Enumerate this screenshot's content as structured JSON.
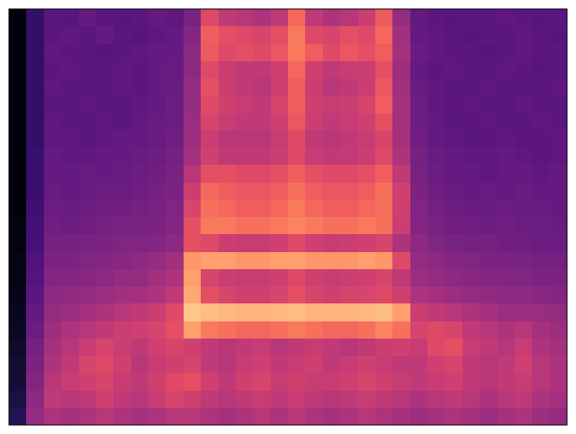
{
  "chart_data": {
    "type": "heatmap",
    "tick_labels": false,
    "zlim": [
      0,
      100
    ],
    "values": [
      [
        2,
        18,
        28,
        27,
        30,
        28,
        27,
        28,
        30,
        29,
        35,
        60,
        52,
        50,
        48,
        52,
        68,
        52,
        48,
        50,
        55,
        65,
        42,
        30,
        28,
        27,
        28,
        28,
        29,
        28,
        27,
        28
      ],
      [
        2,
        18,
        28,
        29,
        28,
        30,
        28,
        27,
        29,
        30,
        38,
        66,
        62,
        60,
        58,
        62,
        72,
        60,
        58,
        62,
        60,
        68,
        45,
        30,
        29,
        28,
        27,
        28,
        28,
        29,
        28,
        27
      ],
      [
        2,
        18,
        29,
        28,
        28,
        27,
        28,
        29,
        30,
        30,
        40,
        65,
        60,
        62,
        60,
        64,
        72,
        66,
        60,
        64,
        62,
        66,
        46,
        31,
        29,
        28,
        28,
        27,
        28,
        29,
        28,
        28
      ],
      [
        2,
        18,
        28,
        29,
        28,
        28,
        29,
        28,
        30,
        31,
        40,
        60,
        55,
        52,
        52,
        56,
        68,
        56,
        52,
        54,
        55,
        62,
        44,
        30,
        28,
        29,
        28,
        28,
        29,
        28,
        27,
        28
      ],
      [
        2,
        18,
        29,
        28,
        28,
        28,
        29,
        28,
        30,
        31,
        42,
        62,
        55,
        52,
        50,
        56,
        66,
        55,
        50,
        52,
        55,
        64,
        45,
        31,
        29,
        28,
        28,
        29,
        28,
        28,
        28,
        29
      ],
      [
        2,
        18,
        28,
        28,
        29,
        28,
        28,
        29,
        30,
        32,
        42,
        60,
        56,
        54,
        52,
        58,
        66,
        56,
        54,
        55,
        58,
        66,
        46,
        32,
        29,
        28,
        29,
        28,
        28,
        29,
        28,
        28
      ],
      [
        2,
        18,
        29,
        28,
        28,
        29,
        28,
        30,
        31,
        32,
        43,
        58,
        54,
        52,
        52,
        56,
        64,
        55,
        52,
        54,
        56,
        62,
        46,
        32,
        30,
        28,
        28,
        29,
        28,
        28,
        29,
        28
      ],
      [
        2,
        18,
        29,
        29,
        28,
        29,
        30,
        30,
        31,
        33,
        44,
        55,
        50,
        50,
        50,
        54,
        60,
        52,
        50,
        52,
        54,
        58,
        46,
        33,
        30,
        29,
        28,
        28,
        29,
        28,
        28,
        29
      ],
      [
        2,
        19,
        30,
        29,
        29,
        30,
        30,
        31,
        32,
        34,
        46,
        56,
        52,
        52,
        52,
        55,
        60,
        54,
        52,
        53,
        55,
        60,
        48,
        34,
        31,
        30,
        29,
        29,
        30,
        29,
        28,
        29
      ],
      [
        2,
        20,
        30,
        30,
        31,
        30,
        31,
        32,
        33,
        35,
        50,
        62,
        62,
        60,
        60,
        62,
        66,
        62,
        60,
        60,
        62,
        66,
        52,
        35,
        32,
        30,
        30,
        29,
        30,
        30,
        29,
        30
      ],
      [
        2,
        20,
        31,
        30,
        31,
        32,
        32,
        33,
        34,
        36,
        55,
        68,
        66,
        64,
        64,
        66,
        70,
        66,
        64,
        64,
        66,
        70,
        56,
        36,
        33,
        31,
        30,
        31,
        30,
        31,
        30,
        30
      ],
      [
        2,
        21,
        32,
        31,
        32,
        33,
        33,
        34,
        35,
        37,
        58,
        70,
        68,
        66,
        66,
        68,
        72,
        68,
        66,
        66,
        68,
        70,
        56,
        37,
        34,
        32,
        31,
        31,
        32,
        31,
        31,
        30
      ],
      [
        3,
        22,
        33,
        32,
        33,
        34,
        35,
        35,
        36,
        38,
        62,
        72,
        72,
        70,
        70,
        72,
        74,
        72,
        70,
        70,
        72,
        70,
        55,
        38,
        35,
        33,
        33,
        32,
        33,
        32,
        32,
        31
      ],
      [
        3,
        23,
        34,
        34,
        35,
        36,
        37,
        37,
        38,
        40,
        62,
        60,
        55,
        54,
        54,
        56,
        60,
        56,
        54,
        55,
        56,
        58,
        48,
        40,
        37,
        35,
        34,
        34,
        33,
        33,
        32,
        32
      ],
      [
        4,
        25,
        36,
        36,
        37,
        38,
        39,
        40,
        42,
        45,
        78,
        80,
        80,
        78,
        78,
        80,
        80,
        78,
        78,
        78,
        80,
        78,
        60,
        42,
        40,
        38,
        37,
        36,
        36,
        35,
        34,
        34
      ],
      [
        4,
        26,
        38,
        38,
        39,
        40,
        42,
        42,
        45,
        48,
        80,
        58,
        55,
        54,
        54,
        56,
        60,
        56,
        54,
        55,
        56,
        58,
        52,
        44,
        42,
        40,
        39,
        38,
        38,
        37,
        36,
        36
      ],
      [
        5,
        28,
        40,
        41,
        42,
        44,
        45,
        46,
        48,
        52,
        82,
        62,
        58,
        56,
        56,
        58,
        62,
        58,
        56,
        58,
        58,
        60,
        56,
        48,
        46,
        44,
        42,
        41,
        40,
        40,
        39,
        38
      ],
      [
        6,
        30,
        42,
        44,
        46,
        48,
        50,
        52,
        55,
        60,
        88,
        86,
        85,
        84,
        84,
        85,
        86,
        84,
        84,
        84,
        85,
        86,
        80,
        55,
        52,
        50,
        48,
        46,
        44,
        44,
        43,
        42
      ],
      [
        7,
        32,
        44,
        48,
        50,
        52,
        55,
        56,
        58,
        62,
        80,
        72,
        70,
        68,
        68,
        70,
        72,
        70,
        68,
        68,
        70,
        74,
        70,
        58,
        60,
        58,
        52,
        50,
        48,
        50,
        46,
        44
      ],
      [
        8,
        34,
        46,
        50,
        54,
        58,
        55,
        52,
        56,
        58,
        56,
        52,
        50,
        52,
        54,
        50,
        52,
        54,
        52,
        50,
        52,
        55,
        56,
        54,
        60,
        62,
        54,
        52,
        50,
        54,
        48,
        46
      ],
      [
        9,
        36,
        48,
        52,
        58,
        60,
        56,
        50,
        54,
        56,
        58,
        52,
        50,
        54,
        56,
        52,
        54,
        56,
        52,
        54,
        56,
        54,
        52,
        52,
        56,
        58,
        52,
        50,
        52,
        56,
        50,
        48
      ],
      [
        10,
        38,
        50,
        54,
        56,
        58,
        54,
        52,
        56,
        60,
        62,
        56,
        52,
        56,
        58,
        54,
        56,
        54,
        54,
        56,
        58,
        56,
        54,
        52,
        54,
        56,
        52,
        50,
        52,
        54,
        50,
        48
      ],
      [
        12,
        40,
        52,
        50,
        52,
        56,
        52,
        50,
        54,
        58,
        56,
        52,
        50,
        52,
        54,
        52,
        54,
        52,
        50,
        52,
        54,
        52,
        50,
        48,
        50,
        52,
        50,
        48,
        50,
        52,
        48,
        46
      ],
      [
        15,
        42,
        48,
        46,
        48,
        50,
        48,
        46,
        48,
        50,
        50,
        48,
        46,
        48,
        50,
        48,
        50,
        48,
        46,
        48,
        50,
        48,
        46,
        44,
        46,
        48,
        46,
        44,
        46,
        48,
        44,
        42
      ]
    ]
  }
}
